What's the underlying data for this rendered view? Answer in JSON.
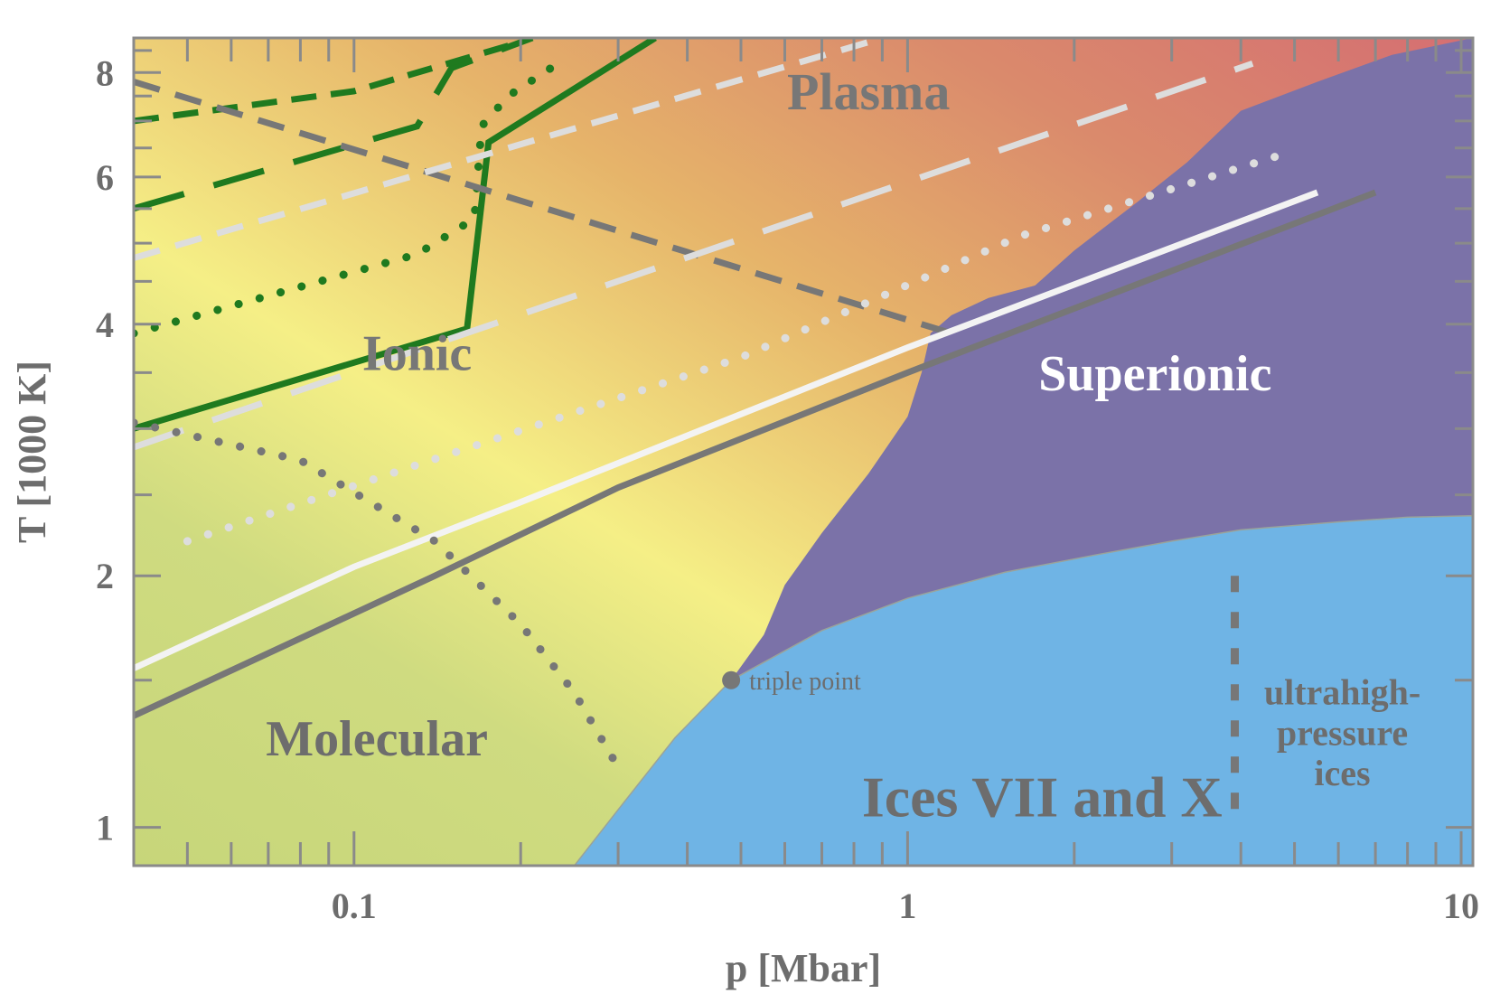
{
  "chart_data": {
    "type": "line",
    "title": "",
    "xlabel": "p [Mbar]",
    "ylabel": "T [1000 K]",
    "xscale": "log",
    "yscale": "log",
    "xlim": [
      0.04,
      10.5
    ],
    "ylim": [
      0.9,
      8.8
    ],
    "x_ticks": [
      {
        "value": 0.1,
        "label": "0.1"
      },
      {
        "value": 1,
        "label": "1"
      },
      {
        "value": 10,
        "label": "10"
      }
    ],
    "y_ticks": [
      {
        "value": 1,
        "label": "1"
      },
      {
        "value": 2,
        "label": "2"
      },
      {
        "value": 4,
        "label": "4"
      },
      {
        "value": 6,
        "label": "6"
      },
      {
        "value": 8,
        "label": "8"
      }
    ],
    "regions": [
      {
        "name": "Plasma",
        "color": "#d37272",
        "label_at": [
          0.85,
          7.6
        ]
      },
      {
        "name": "Ionic",
        "color": "#e7b066",
        "label_at": [
          0.13,
          3.7
        ]
      },
      {
        "name": "Molecular",
        "color": "#cdd77c",
        "label_at": [
          0.11,
          1.28
        ]
      },
      {
        "name": "Superionic",
        "color": "#7b72a8",
        "label_at": [
          2.8,
          3.5
        ]
      },
      {
        "name": "Ices VII and X",
        "color": "#6fb4e5",
        "label_at": [
          1.75,
          1.09
        ]
      },
      {
        "name": "ultrahigh-\npressure\nices",
        "color": "#6fb4e5",
        "label_at": [
          6.1,
          1.3
        ]
      }
    ],
    "region_boundaries": {
      "solid_liquid": [
        [
          0.25,
          0.9
        ],
        [
          0.3,
          1.05
        ],
        [
          0.38,
          1.28
        ],
        [
          0.48,
          1.5
        ],
        [
          0.55,
          1.7
        ],
        [
          0.6,
          1.95
        ],
        [
          0.7,
          2.25
        ],
        [
          0.85,
          2.65
        ],
        [
          1.0,
          3.1
        ],
        [
          1.06,
          3.5
        ],
        [
          1.1,
          3.9
        ],
        [
          1.2,
          4.1
        ],
        [
          1.4,
          4.3
        ],
        [
          1.7,
          4.45
        ],
        [
          2.0,
          4.9
        ],
        [
          2.6,
          5.6
        ],
        [
          3.2,
          6.25
        ],
        [
          4.0,
          7.2
        ],
        [
          5.5,
          7.8
        ],
        [
          7.5,
          8.4
        ],
        [
          10.5,
          8.8
        ]
      ],
      "superionic_ice": [
        [
          0.48,
          1.5
        ],
        [
          0.7,
          1.72
        ],
        [
          1.0,
          1.88
        ],
        [
          1.5,
          2.02
        ],
        [
          2.2,
          2.12
        ],
        [
          3.0,
          2.2
        ],
        [
          4.0,
          2.27
        ],
        [
          6.0,
          2.32
        ],
        [
          8.0,
          2.35
        ],
        [
          10.5,
          2.36
        ]
      ],
      "triple_point": {
        "x": 0.48,
        "y": 1.5,
        "label": "triple point"
      },
      "ultrahigh_pressure_divider": {
        "x": 3.9,
        "ymin": 1.04,
        "ymax": 2.0
      }
    },
    "series": [
      {
        "style": "solid",
        "color": "#1f7a1f",
        "width": 7,
        "points": [
          [
            0.04,
            3.0
          ],
          [
            0.16,
            3.95
          ],
          [
            0.175,
            6.6
          ],
          [
            0.35,
            8.8
          ]
        ]
      },
      {
        "style": "long-dash",
        "color": "#1f7a1f",
        "width": 7,
        "points": [
          [
            0.04,
            5.5
          ],
          [
            0.13,
            6.9
          ],
          [
            0.15,
            8.1
          ],
          [
            0.21,
            8.8
          ]
        ]
      },
      {
        "style": "short-dash",
        "color": "#1f7a1f",
        "width": 7,
        "points": [
          [
            0.04,
            7.0
          ],
          [
            0.1,
            7.6
          ],
          [
            0.2,
            8.7
          ]
        ]
      },
      {
        "style": "dotted",
        "color": "#1f7a1f",
        "width": 7,
        "points": [
          [
            0.04,
            3.9
          ],
          [
            0.13,
            4.85
          ],
          [
            0.165,
            5.35
          ],
          [
            0.17,
            6.9
          ],
          [
            0.19,
            7.5
          ],
          [
            0.24,
            8.3
          ]
        ]
      },
      {
        "style": "dash",
        "color": "#777777",
        "width": 7,
        "points": [
          [
            0.04,
            7.8
          ],
          [
            1.2,
            3.9
          ]
        ]
      },
      {
        "style": "dash",
        "color": "#dddddd",
        "width": 7,
        "points": [
          [
            0.04,
            4.8
          ],
          [
            0.85,
            8.7
          ]
        ]
      },
      {
        "style": "long-dash",
        "color": "#dddddd",
        "width": 7,
        "points": [
          [
            0.04,
            2.85
          ],
          [
            4.2,
            8.2
          ]
        ]
      },
      {
        "style": "dotted",
        "color": "#dddddd",
        "width": 7,
        "points": [
          [
            0.05,
            2.2
          ],
          [
            0.5,
            3.65
          ],
          [
            1.6,
            5.1
          ],
          [
            5.0,
            6.45
          ]
        ]
      },
      {
        "style": "solid",
        "color": "#f3f3f3",
        "width": 7,
        "points": [
          [
            0.04,
            1.55
          ],
          [
            0.1,
            2.05
          ],
          [
            0.2,
            2.45
          ],
          [
            1.0,
            3.75
          ],
          [
            5.5,
            5.75
          ]
        ]
      },
      {
        "style": "solid",
        "color": "#777777",
        "width": 7,
        "points": [
          [
            0.04,
            1.36
          ],
          [
            0.14,
            2.0
          ],
          [
            0.3,
            2.55
          ],
          [
            1.0,
            3.5
          ],
          [
            7.0,
            5.75
          ]
        ]
      },
      {
        "style": "dotted",
        "color": "#777777",
        "width": 7,
        "points": [
          [
            0.04,
            3.05
          ],
          [
            0.08,
            2.75
          ],
          [
            0.14,
            2.2
          ],
          [
            0.2,
            1.75
          ],
          [
            0.25,
            1.45
          ],
          [
            0.3,
            1.18
          ]
        ]
      }
    ]
  }
}
